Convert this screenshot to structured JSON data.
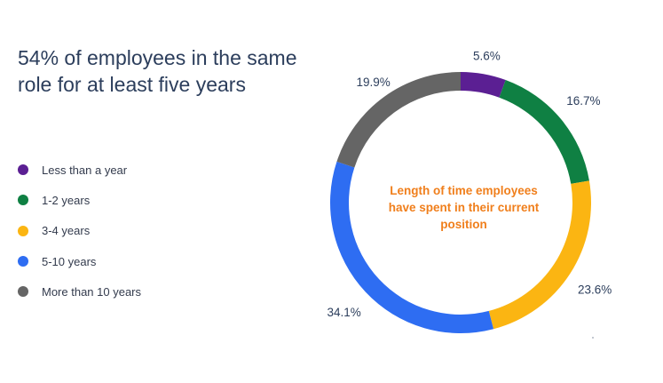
{
  "chart_data": {
    "type": "pie",
    "title": "54% of employees in the same role for at least five years",
    "center_label_lines": [
      "Length of time employees",
      "have spent in their current",
      "position"
    ],
    "categories": [
      "Less than a year",
      "1-2 years",
      "3-4 years",
      "5-10 years",
      "More than 10 years"
    ],
    "values": [
      5.6,
      16.7,
      23.6,
      34.1,
      19.9
    ],
    "value_labels": [
      "5.6%",
      "16.7%",
      "23.6%",
      "34.1%",
      "19.9%"
    ],
    "colors": [
      "#5b1f93",
      "#0f8043",
      "#fbb512",
      "#2e6df2",
      "#656565"
    ],
    "legend_position": "left",
    "style": "donut"
  }
}
